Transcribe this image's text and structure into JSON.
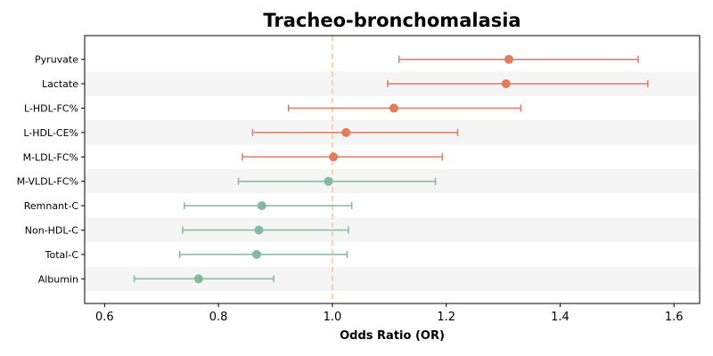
{
  "chart_data": {
    "type": "forest",
    "title": "Tracheo-bronchomalasia",
    "xlabel": "Odds Ratio (OR)",
    "xlim": [
      0.565,
      1.645
    ],
    "xticks": [
      0.6,
      0.8,
      1.0,
      1.2,
      1.4,
      1.6
    ],
    "xtick_labels": [
      "0.6",
      "0.8",
      "1.0",
      "1.2",
      "1.4",
      "1.6"
    ],
    "reference_line": 1.0,
    "colors": {
      "increased": "#e07b5e",
      "decreased": "#86b89f",
      "reference": "#f2c98e",
      "stripe": "#f5f5f5"
    },
    "rows": [
      {
        "label": "Pyruvate",
        "or": 1.31,
        "lower": 1.117,
        "upper": 1.537,
        "group": "increased"
      },
      {
        "label": "Lactate",
        "or": 1.305,
        "lower": 1.097,
        "upper": 1.554,
        "group": "increased"
      },
      {
        "label": "L-HDL-FC%",
        "or": 1.108,
        "lower": 0.923,
        "upper": 1.331,
        "group": "increased"
      },
      {
        "label": "L-HDL-CE%",
        "or": 1.024,
        "lower": 0.86,
        "upper": 1.22,
        "group": "increased"
      },
      {
        "label": "M-LDL-FC%",
        "or": 1.002,
        "lower": 0.842,
        "upper": 1.193,
        "group": "increased"
      },
      {
        "label": "M-VLDL-FC%",
        "or": 0.993,
        "lower": 0.835,
        "upper": 1.181,
        "group": "decreased"
      },
      {
        "label": "Remnant-C",
        "or": 0.876,
        "lower": 0.74,
        "upper": 1.034,
        "group": "decreased"
      },
      {
        "label": "Non-HDL-C",
        "or": 0.871,
        "lower": 0.737,
        "upper": 1.028,
        "group": "decreased"
      },
      {
        "label": "Total-C",
        "or": 0.867,
        "lower": 0.732,
        "upper": 1.026,
        "group": "decreased"
      },
      {
        "label": "Albumin",
        "or": 0.765,
        "lower": 0.652,
        "upper": 0.897,
        "group": "decreased"
      }
    ]
  }
}
